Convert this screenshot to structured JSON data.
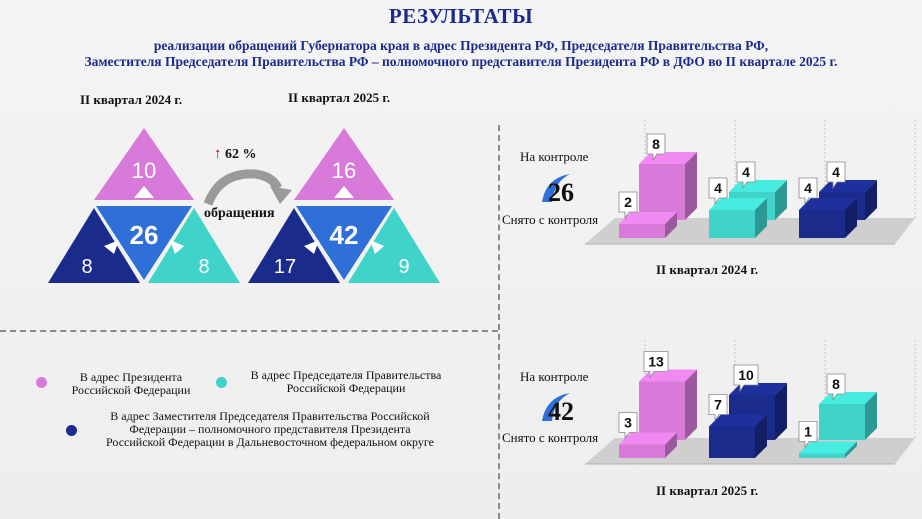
{
  "header": {
    "title": "РЕЗУЛЬТАТЫ",
    "line1": "реализации обращений Губернатора края в адрес Президента РФ, Председателя Правительства  РФ,",
    "line2": "Заместителя  Председателя Правительства  РФ – полномочного представителя Президента  РФ в ДФО во II  квартале  2025 г."
  },
  "periods": {
    "left": "II  квартал  2024 г.",
    "right": "II  квартал  2025 г."
  },
  "comparison": {
    "growth": "62 %",
    "label": "обращения"
  },
  "pyramid_2024": {
    "top": "10",
    "center": "26",
    "left": "8",
    "right": "8"
  },
  "pyramid_2025": {
    "top": "16",
    "center": "42",
    "left": "17",
    "right": "9"
  },
  "legend": {
    "president": "В адрес Президента\nРоссийской Федерации",
    "chairman": "В адрес Председателя Правительства\nРоссийской Федерации",
    "deputy": "В адрес Заместителя Председателя Правительства Российской\nФедерации – полномочного представителя Президента\nРоссийской Федерации в Дальневосточном федеральном округе"
  },
  "colors": {
    "president": "#d77ad9",
    "chairman": "#3fd3c9",
    "deputy": "#1a2b8c",
    "center": "#2f6fd8",
    "title": "#1a2b8c"
  },
  "chart_2024": {
    "on_control_label": "На контроле",
    "removed_label": "Снято с контроля",
    "total": "26",
    "caption": "II  квартал  2024 г."
  },
  "chart_2025": {
    "on_control_label": "На контроле",
    "removed_label": "Снято с контроля",
    "total": "42",
    "caption": "II  квартал  2025 г."
  },
  "chart_data": [
    {
      "type": "bar",
      "title": "II  квартал  2024 г.",
      "categories": [
        "В адрес Президента",
        "В адрес Председателя Правительства",
        "В адрес Заместителя Председателя Правительства"
      ],
      "series": [
        {
          "name": "Снято с контроля",
          "values": [
            2,
            4,
            4
          ]
        },
        {
          "name": "На контроле",
          "values": [
            8,
            4,
            4
          ]
        }
      ]
    },
    {
      "type": "bar",
      "title": "II  квартал  2025 г.",
      "categories": [
        "В адрес Президента",
        "В адрес Заместителя Председателя Правительства",
        "В адрес Председателя Правительства"
      ],
      "series": [
        {
          "name": "Снято с контроля",
          "values": [
            3,
            7,
            1
          ]
        },
        {
          "name": "На контроле",
          "values": [
            13,
            10,
            8
          ]
        }
      ]
    }
  ]
}
